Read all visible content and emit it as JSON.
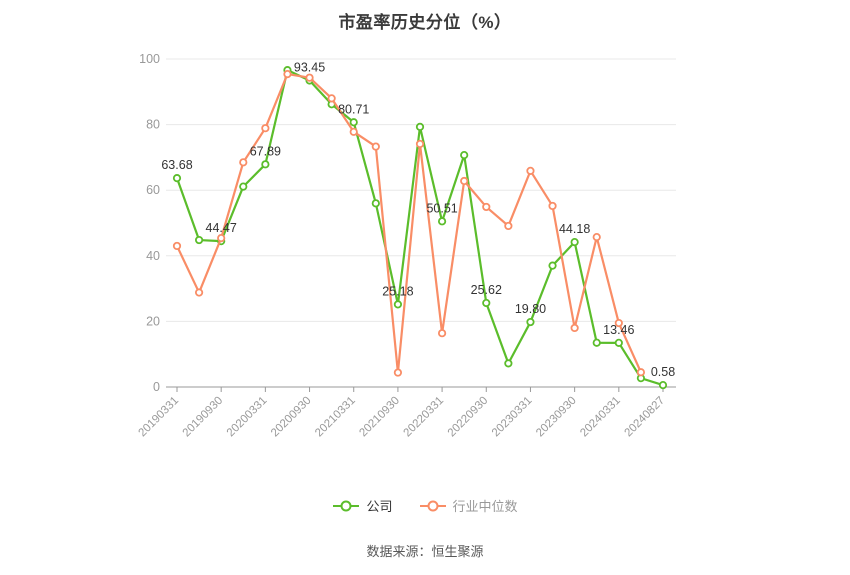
{
  "title": "市盈率历史分位（%）",
  "footer": "数据来源：恒生聚源",
  "legend": {
    "items": [
      {
        "name": "公司",
        "color": "#5bbd2b",
        "text_color": "#333333"
      },
      {
        "name": "行业中位数",
        "color": "#f98d66",
        "text_color": "#999999"
      }
    ]
  },
  "chart_data": {
    "type": "line",
    "title": "市盈率历史分位（%）",
    "ylim": [
      0,
      100
    ],
    "y_ticks": [
      0,
      20,
      40,
      60,
      80,
      100
    ],
    "grid": true,
    "legend_position": "bottom",
    "x_tick_labels": [
      "20190331",
      "20190930",
      "20200331",
      "20200930",
      "20210331",
      "20210930",
      "20220331",
      "20220930",
      "20230331",
      "20230930",
      "20240331",
      "20240827"
    ],
    "x_label_every": 2,
    "n_points": 23,
    "series": [
      {
        "name": "公司",
        "color": "#5bbd2b",
        "values": [
          63.68,
          44.8,
          44.47,
          61.1,
          67.89,
          96.6,
          93.45,
          86.2,
          80.71,
          56.0,
          25.18,
          79.3,
          50.51,
          70.7,
          25.62,
          7.2,
          19.8,
          37.0,
          44.18,
          13.5,
          13.46,
          2.7,
          0.58
        ],
        "point_labels": [
          "63.68",
          "44.47",
          "67.89",
          "93.45",
          "80.71",
          "25.18",
          "50.51",
          "25.62",
          "19.80",
          "44.18",
          "13.46",
          "0.58"
        ],
        "point_label_indices": [
          0,
          2,
          4,
          6,
          8,
          10,
          12,
          14,
          16,
          18,
          20,
          22
        ]
      },
      {
        "name": "行业中位数",
        "color": "#f98d66",
        "values": [
          43.0,
          28.8,
          45.4,
          68.5,
          78.9,
          95.4,
          94.3,
          88.0,
          77.8,
          73.3,
          4.4,
          74.1,
          16.4,
          62.8,
          54.9,
          49.1,
          65.9,
          55.2,
          18.0,
          45.7,
          19.5,
          4.5,
          null
        ],
        "point_labels": [],
        "point_label_indices": []
      }
    ],
    "colors": {
      "grid_line": "#e8e8e8",
      "axis_line": "#999999",
      "tick_label": "#999999",
      "data_label": "#333333"
    }
  }
}
